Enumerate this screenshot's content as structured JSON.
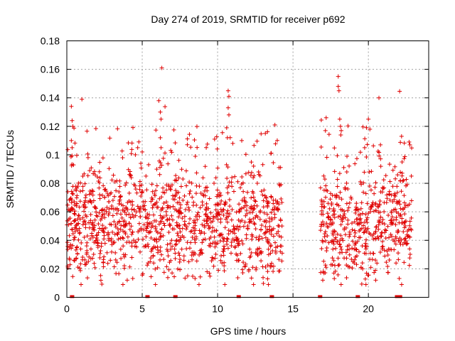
{
  "chart_data": {
    "type": "scatter",
    "title": "Day 274 of 2019, SRMTID for receiver p692",
    "xlabel": "GPS time / hours",
    "ylabel": "SRMTID / TECUs",
    "xlim": [
      0,
      24
    ],
    "ylim": [
      0,
      0.18
    ],
    "x_ticks": [
      0,
      5,
      10,
      15,
      20
    ],
    "x_tick_labels": [
      "0",
      "5",
      "10",
      "15",
      "20"
    ],
    "y_ticks": [
      0,
      0.02,
      0.04,
      0.06,
      0.08,
      0.1,
      0.12,
      0.14,
      0.16,
      0.18
    ],
    "y_tick_labels": [
      "0",
      "0.02",
      "0.04",
      "0.06",
      "0.08",
      "0.1",
      "0.12",
      "0.14",
      "0.16",
      "0.18"
    ],
    "grid": true,
    "marker": "+",
    "color": "#e00000",
    "data_segments": [
      {
        "x_start": 0.0,
        "x_end": 14.3,
        "y_center": 0.05,
        "y_spread": 0.02
      },
      {
        "x_start": 16.8,
        "x_end": 22.9,
        "y_center": 0.05,
        "y_spread": 0.02
      }
    ],
    "outliers": [
      {
        "x": 0.3,
        "y": 0.134
      },
      {
        "x": 0.35,
        "y": 0.124
      },
      {
        "x": 0.4,
        "y": 0.12
      },
      {
        "x": 0.3,
        "y": 0.11
      },
      {
        "x": 0.35,
        "y": 0.105
      },
      {
        "x": 1.0,
        "y": 0.139
      },
      {
        "x": 6.1,
        "y": 0.138
      },
      {
        "x": 6.2,
        "y": 0.13
      },
      {
        "x": 6.25,
        "y": 0.125
      },
      {
        "x": 6.3,
        "y": 0.161
      },
      {
        "x": 6.2,
        "y": 0.112
      },
      {
        "x": 6.25,
        "y": 0.105
      },
      {
        "x": 10.7,
        "y": 0.145
      },
      {
        "x": 10.75,
        "y": 0.141
      },
      {
        "x": 10.7,
        "y": 0.133
      },
      {
        "x": 10.75,
        "y": 0.128
      },
      {
        "x": 10.6,
        "y": 0.119
      },
      {
        "x": 10.65,
        "y": 0.112
      },
      {
        "x": 13.8,
        "y": 0.121
      },
      {
        "x": 11.6,
        "y": 0.11
      },
      {
        "x": 9.8,
        "y": 0.111
      },
      {
        "x": 17.2,
        "y": 0.126
      },
      {
        "x": 17.15,
        "y": 0.117
      },
      {
        "x": 18.0,
        "y": 0.155
      },
      {
        "x": 18.0,
        "y": 0.148
      },
      {
        "x": 18.05,
        "y": 0.145
      },
      {
        "x": 18.1,
        "y": 0.125
      },
      {
        "x": 18.15,
        "y": 0.12
      },
      {
        "x": 18.2,
        "y": 0.117
      },
      {
        "x": 20.0,
        "y": 0.125
      },
      {
        "x": 20.1,
        "y": 0.118
      },
      {
        "x": 20.7,
        "y": 0.14
      },
      {
        "x": 20.8,
        "y": 0.107
      },
      {
        "x": 22.2,
        "y": 0.113
      },
      {
        "x": 22.7,
        "y": 0.109
      },
      {
        "x": 22.75,
        "y": 0.107
      },
      {
        "x": 3.7,
        "y": 0.098
      },
      {
        "x": 4.7,
        "y": 0.105
      },
      {
        "x": 5.0,
        "y": 0.102
      }
    ],
    "zero_markers": [
      0.35,
      5.35,
      7.2,
      11.4,
      13.6,
      16.8,
      19.3,
      21.9,
      22.1
    ]
  }
}
